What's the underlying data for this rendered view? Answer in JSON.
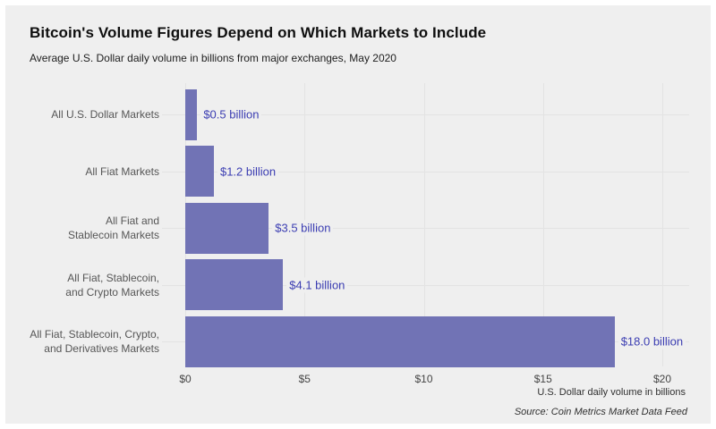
{
  "chart_data": {
    "type": "bar",
    "orientation": "horizontal",
    "title": "Bitcoin's Volume Figures Depend on Which Markets to Include",
    "subtitle": "Average U.S. Dollar daily volume in billions from major exchanges, May 2020",
    "categories": [
      [
        "All U.S. Dollar Markets"
      ],
      [
        "All Fiat Markets"
      ],
      [
        "All Fiat and",
        "Stablecoin Markets"
      ],
      [
        "All Fiat, Stablecoin,",
        "and Crypto Markets"
      ],
      [
        "All Fiat, Stablecoin, Crypto,",
        "and Derivatives Markets"
      ]
    ],
    "values": [
      0.5,
      1.2,
      3.5,
      4.1,
      18.0
    ],
    "value_labels": [
      "$0.5 billion",
      "$1.2 billion",
      "$3.5 billion",
      "$4.1 billion",
      "$18.0 billion"
    ],
    "xlabel": "U.S. Dollar daily volume in billions",
    "xticks": [
      "$0",
      "$5",
      "$10",
      "$15",
      "$20"
    ],
    "xtick_values": [
      0,
      5,
      10,
      15,
      20
    ],
    "xlim": [
      0,
      20
    ],
    "grid": true,
    "legend": "none",
    "source": "Source: Coin Metrics Market Data Feed",
    "colors": {
      "bar": "#7173b5",
      "value_label": "#3b3db2",
      "background": "#efefef",
      "gridline": "#e3e3e3",
      "category_label": "#565656",
      "tick_label": "#454545"
    }
  }
}
